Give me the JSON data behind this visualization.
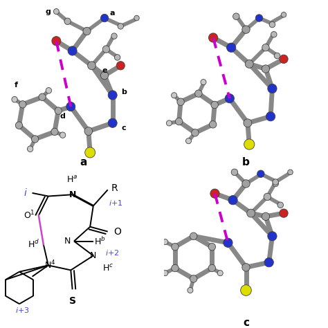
{
  "fig_width": 4.74,
  "fig_height": 4.74,
  "dpi": 100,
  "background_color": "#ffffff",
  "label_a": "a",
  "label_b": "b",
  "label_c": "c",
  "label_fontsize": 11,
  "label_fontweight": "bold",
  "magenta_color": "#cc00cc",
  "black_color": "#000000",
  "blue_color": "#2222bb",
  "chem_label_fontsize": 9,
  "chem_italic_color": "#4444dd",
  "chem_black_color": "#000000",
  "chem_pink_color": "#cc44cc",
  "atom_gray": "#a0a0a0",
  "atom_dark_gray": "#707070",
  "atom_blue": "#2233cc",
  "atom_red": "#cc2222",
  "atom_yellow": "#dddd00",
  "atom_light": "#cccccc",
  "bond_gray": "#909090",
  "bond_lw": 5
}
